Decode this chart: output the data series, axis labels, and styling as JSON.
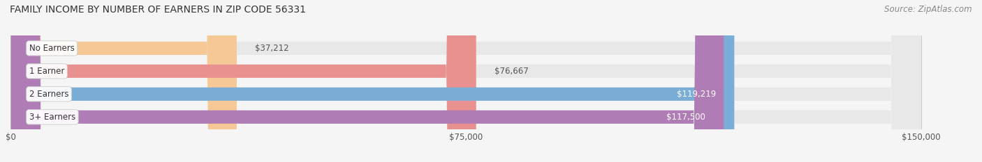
{
  "title": "FAMILY INCOME BY NUMBER OF EARNERS IN ZIP CODE 56331",
  "source": "Source: ZipAtlas.com",
  "categories": [
    "No Earners",
    "1 Earner",
    "2 Earners",
    "3+ Earners"
  ],
  "values": [
    37212,
    76667,
    119219,
    117500
  ],
  "bar_colors": [
    "#f5c896",
    "#e8918f",
    "#7aaed6",
    "#b07cb5"
  ],
  "bar_bg_color": "#e8e8e8",
  "max_value": 150000,
  "xtick_values": [
    0,
    75000,
    150000
  ],
  "xtick_labels": [
    "$0",
    "$75,000",
    "$150,000"
  ],
  "figsize": [
    14.06,
    2.33
  ],
  "dpi": 100,
  "title_fontsize": 10,
  "source_fontsize": 8.5,
  "label_fontsize": 8.5,
  "category_fontsize": 8.5,
  "tick_fontsize": 8.5,
  "bg_color": "#f5f5f5"
}
